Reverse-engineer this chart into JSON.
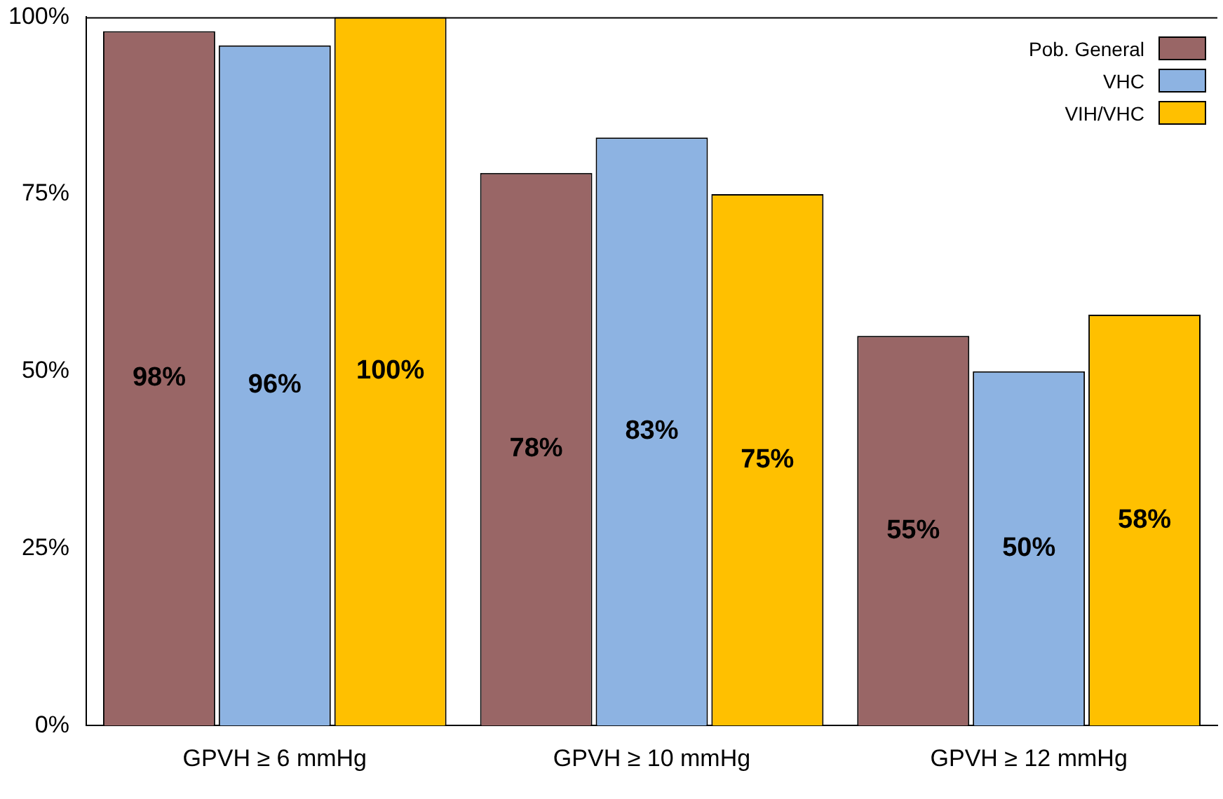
{
  "chart_data": {
    "type": "bar",
    "categories": [
      "GPVH ≥ 6 mmHg",
      "GPVH ≥ 10 mmHg",
      "GPVH ≥ 12 mmHg"
    ],
    "series": [
      {
        "name": "Pob. General",
        "color": "#996666",
        "values": [
          98,
          78,
          55
        ],
        "value_labels": [
          "98%",
          "78%",
          "55%"
        ]
      },
      {
        "name": "VHC",
        "color": "#8db3e2",
        "values": [
          96,
          83,
          50
        ],
        "value_labels": [
          "96%",
          "83%",
          "50%"
        ]
      },
      {
        "name": "VIH/VHC",
        "color": "#ffc000",
        "values": [
          100,
          75,
          58
        ],
        "value_labels": [
          "100%",
          "75%",
          "58%"
        ]
      }
    ],
    "ylim": [
      0,
      100
    ],
    "yticks": [
      {
        "value": 0,
        "label": "0%"
      },
      {
        "value": 25,
        "label": "25%"
      },
      {
        "value": 50,
        "label": "50%"
      },
      {
        "value": 75,
        "label": "75%"
      },
      {
        "value": 100,
        "label": "100%"
      }
    ],
    "grid": false,
    "legend": "top right"
  }
}
